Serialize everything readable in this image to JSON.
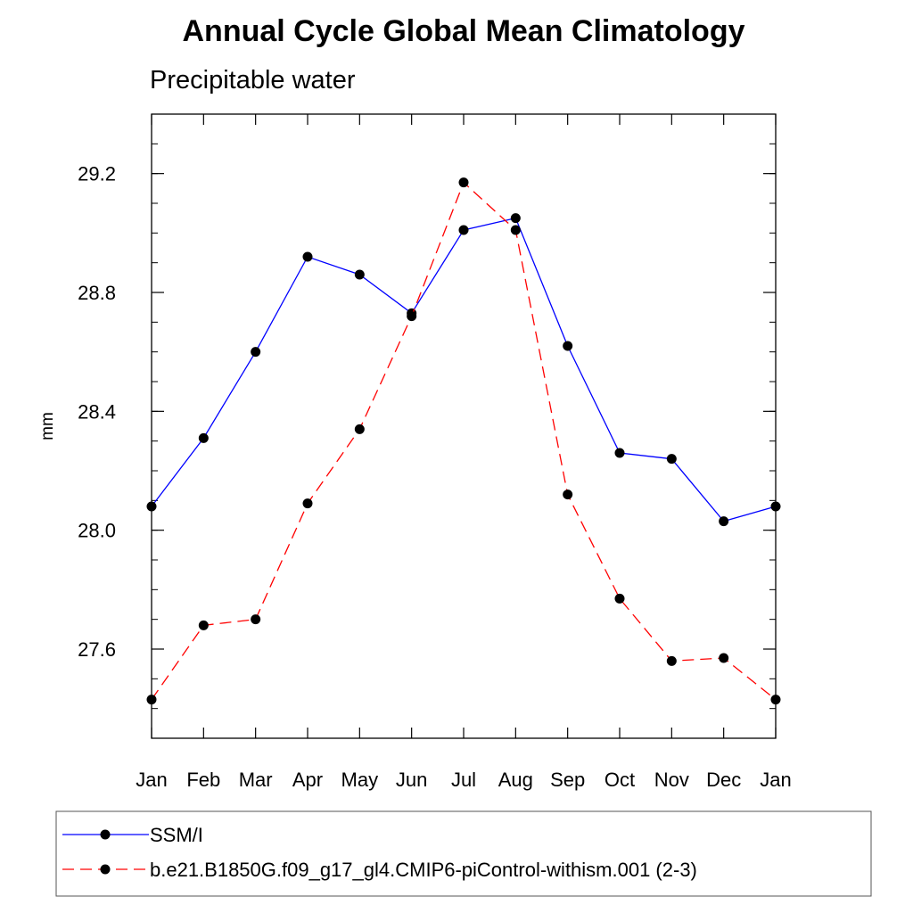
{
  "chart_data": {
    "type": "line",
    "title": "Annual Cycle Global Mean Climatology",
    "subtitle": "Precipitable water",
    "ylabel": "mm",
    "xlabel": "",
    "categories": [
      "Jan",
      "Feb",
      "Mar",
      "Apr",
      "May",
      "Jun",
      "Jul",
      "Aug",
      "Sep",
      "Oct",
      "Nov",
      "Dec",
      "Jan"
    ],
    "ylim": [
      27.3,
      29.4
    ],
    "yticks": [
      27.6,
      28.0,
      28.4,
      28.8,
      29.2
    ],
    "ytick_labels": [
      "27.6",
      "28.0",
      "28.4",
      "28.8",
      "29.2"
    ],
    "minor_step": 0.1,
    "grid": false,
    "legend_position": "bottom",
    "series": [
      {
        "name": "SSM/I",
        "color": "#0000ff",
        "dash": "solid",
        "marker": "filled-circle",
        "values": [
          28.08,
          28.31,
          28.6,
          28.92,
          28.86,
          28.73,
          29.01,
          29.05,
          28.62,
          28.26,
          28.24,
          28.03,
          28.08
        ]
      },
      {
        "name": "b.e21.B1850G.f09_g17_gl4.CMIP6-piControl-withism.001 (2-3)",
        "color": "#ff0000",
        "dash": "dashed",
        "marker": "filled-circle",
        "values": [
          27.43,
          27.68,
          27.7,
          28.09,
          28.34,
          28.72,
          29.17,
          29.01,
          28.12,
          27.77,
          27.56,
          27.57,
          27.43
        ]
      }
    ]
  }
}
